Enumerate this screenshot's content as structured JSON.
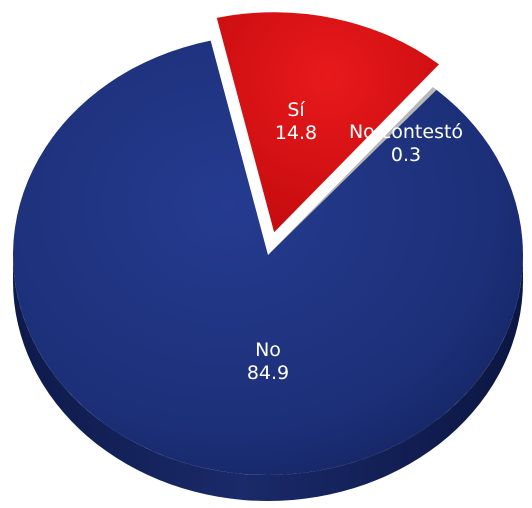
{
  "chart_data": {
    "type": "pie",
    "title": "",
    "legend": "none",
    "slices": [
      {
        "label": "Sí",
        "value": 14.8,
        "value_text": "14.8",
        "color": "#d40f12",
        "exploded": true
      },
      {
        "label": "No contestó",
        "value": 0.3,
        "value_text": "0.3",
        "color": "#b8b8b8",
        "exploded": false
      },
      {
        "label": "No",
        "value": 84.9,
        "value_text": "84.9",
        "color": "#1b2f7b",
        "exploded": false
      }
    ]
  }
}
